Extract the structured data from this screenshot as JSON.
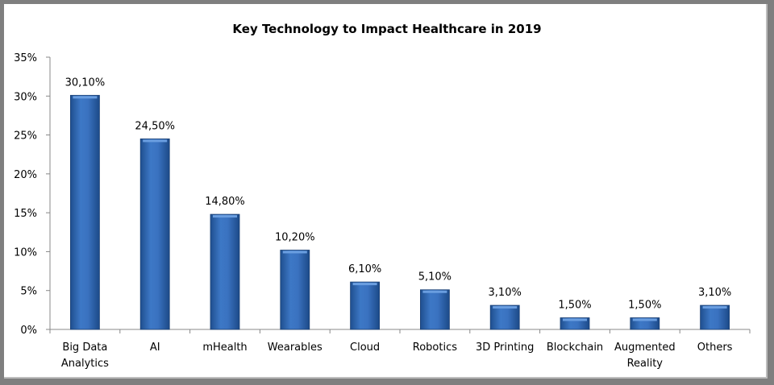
{
  "chart_data": {
    "type": "bar",
    "title": "Key Technology to Impact Healthcare  in 2019",
    "categories": [
      [
        "Big Data",
        "Analytics"
      ],
      [
        "AI"
      ],
      [
        "mHealth"
      ],
      [
        "Wearables"
      ],
      [
        "Cloud"
      ],
      [
        "Robotics"
      ],
      [
        "3D Printing"
      ],
      [
        "Blockchain"
      ],
      [
        "Augmented",
        "Reality"
      ],
      [
        "Others"
      ]
    ],
    "values": [
      30.1,
      24.5,
      14.8,
      10.2,
      6.1,
      5.1,
      3.1,
      1.5,
      1.5,
      3.1
    ],
    "data_labels": [
      "30,10%",
      "24,50%",
      "14,80%",
      "10,20%",
      "6,10%",
      "5,10%",
      "3,10%",
      "1,50%",
      "1,50%",
      "3,10%"
    ],
    "y_ticks": [
      "0%",
      "5%",
      "10%",
      "15%",
      "20%",
      "25%",
      "30%",
      "35%"
    ],
    "ylim": [
      0,
      35
    ],
    "xlabel": "",
    "ylabel": "",
    "grid": false,
    "legend": "none",
    "bar_color": "#3a72c0"
  }
}
